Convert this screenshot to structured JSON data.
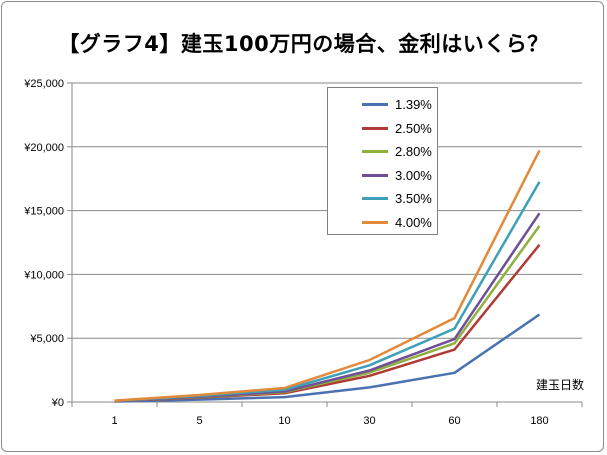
{
  "chart_data": {
    "type": "line",
    "title": "【グラフ4】建玉100万円の場合、金利はいくら？",
    "xlabel": "建玉日数",
    "ylabel": "",
    "categories": [
      "1",
      "5",
      "10",
      "30",
      "60",
      "180"
    ],
    "ylim": [
      0,
      25000
    ],
    "yticks": [
      "¥0",
      "¥5,000",
      "¥10,000",
      "¥15,000",
      "¥20,000",
      "¥25,000"
    ],
    "grid": true,
    "legend_position": "top-right",
    "series": [
      {
        "name": "1.39%",
        "color": "#4a72b0",
        "values": [
          38,
          190,
          381,
          1142,
          2285,
          6855
        ]
      },
      {
        "name": "2.50%",
        "color": "#b03a35",
        "values": [
          68,
          342,
          685,
          2055,
          4110,
          12329
        ]
      },
      {
        "name": "2.80%",
        "color": "#8eb03d",
        "values": [
          77,
          384,
          767,
          2301,
          4603,
          13808
        ]
      },
      {
        "name": "3.00%",
        "color": "#6f4f96",
        "values": [
          82,
          411,
          822,
          2466,
          4932,
          14795
        ]
      },
      {
        "name": "3.50%",
        "color": "#3ca0b8",
        "values": [
          96,
          479,
          959,
          2877,
          5753,
          17260
        ]
      },
      {
        "name": "4.00%",
        "color": "#e2893a",
        "values": [
          110,
          548,
          1096,
          3288,
          6575,
          19726
        ]
      }
    ]
  }
}
